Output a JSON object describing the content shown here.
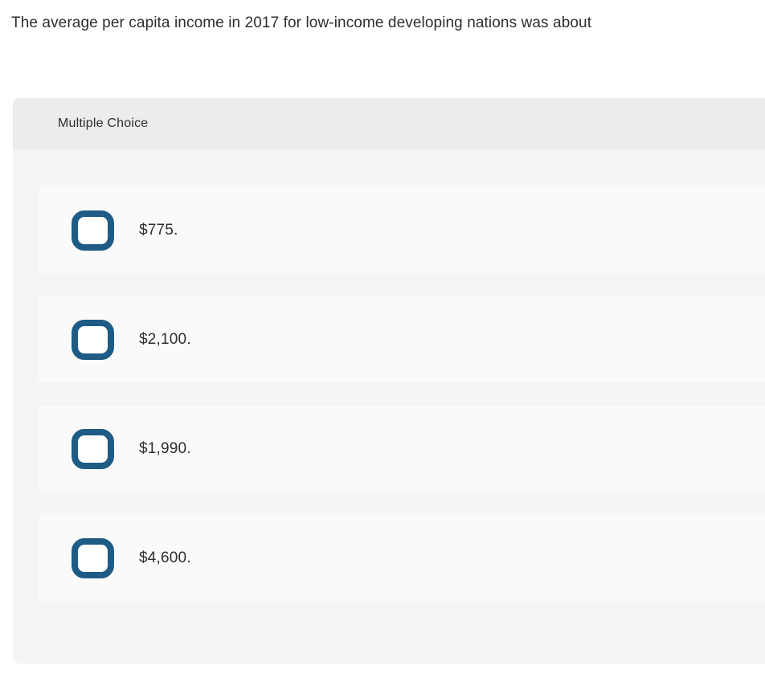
{
  "question": {
    "text": "The average per capita income in 2017 for low-income developing nations was about"
  },
  "panel": {
    "header_label": "Multiple Choice",
    "options": [
      {
        "label": "$775."
      },
      {
        "label": "$2,100."
      },
      {
        "label": "$1,990."
      },
      {
        "label": "$4,600."
      }
    ]
  },
  "colors": {
    "radio_border": "#1e5b85",
    "panel_body_bg": "#f5f5f5",
    "panel_header_bg": "#ececec",
    "option_row_bg": "#fafafa",
    "text": "#2e2e2e"
  }
}
